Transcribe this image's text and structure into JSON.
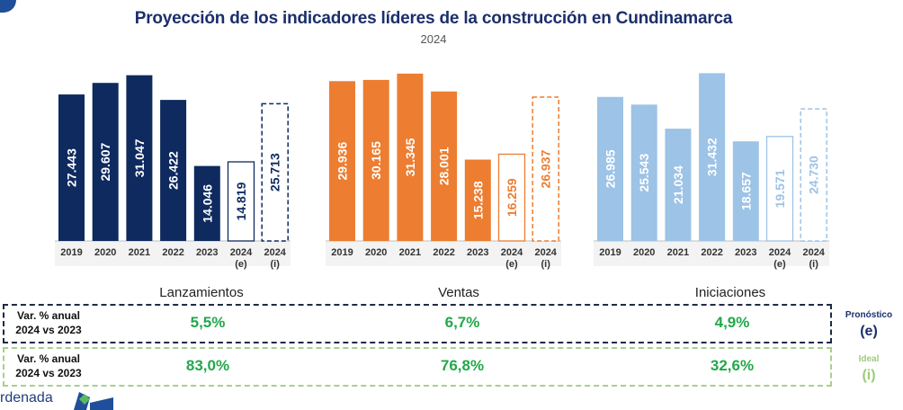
{
  "header": {
    "title": "Proyección de los indicadores líderes de la construcción en Cundinamarca",
    "subtitle": "2024"
  },
  "chart_data": {
    "type": "bar",
    "title": "Proyección de los indicadores líderes de la construcción en Cundinamarca",
    "subtitle": "2024",
    "categories": [
      "2019",
      "2020",
      "2021",
      "2022",
      "2023",
      "2024 (e)",
      "2024 (i)"
    ],
    "ylim": [
      0,
      32000
    ],
    "groups": [
      {
        "name": "Lanzamientos",
        "color": "#0e2a5f",
        "values": [
          27443,
          29607,
          31047,
          26422,
          14046,
          14819,
          25713
        ],
        "labels": [
          "27.443",
          "29.607",
          "31.047",
          "26.422",
          "14.046",
          "14.819",
          "25.713"
        ]
      },
      {
        "name": "Ventas",
        "color": "#ec7d31",
        "values": [
          29936,
          30165,
          31345,
          28001,
          15238,
          16259,
          26937
        ],
        "labels": [
          "29.936",
          "30.165",
          "31.345",
          "28.001",
          "15.238",
          "16.259",
          "26.937"
        ]
      },
      {
        "name": "Iniciaciones",
        "color": "#9dc3e6",
        "values": [
          26985,
          25543,
          21034,
          31432,
          18657,
          19571,
          24730
        ],
        "labels": [
          "26.985",
          "25.543",
          "21.034",
          "31.432",
          "18.657",
          "19.571",
          "24.730"
        ]
      }
    ]
  },
  "table": {
    "row_e": {
      "label_line1": "Var. % anual",
      "label_line2": "2024 vs 2023",
      "values": [
        "5,5%",
        "6,7%",
        "4,9%"
      ]
    },
    "row_i": {
      "label_line1": "Var. % anual",
      "label_line2": "2024 vs 2023",
      "values": [
        "83,0%",
        "76,8%",
        "32,6%"
      ]
    }
  },
  "legend": {
    "e": {
      "name": "Pronóstico",
      "code": "(e)",
      "color": "#1b2f6b"
    },
    "i": {
      "name": "Ideal",
      "code": "(i)",
      "color": "#9ccc7a"
    }
  },
  "footer": {
    "text": "rdenada"
  }
}
